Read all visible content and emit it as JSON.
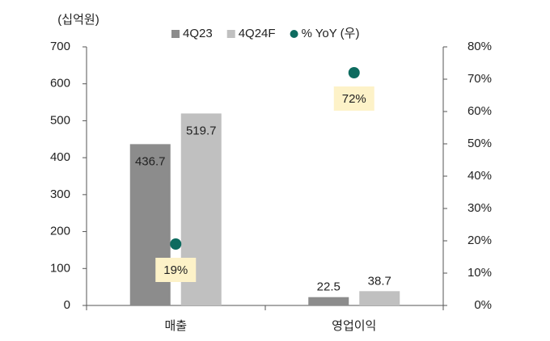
{
  "chart_data": {
    "type": "bar",
    "y_label": "(십억원)",
    "categories": [
      "매출",
      "영업이익"
    ],
    "series": [
      {
        "name": "4Q23",
        "color": "#8c8c8c",
        "values": [
          436.7,
          22.5
        ]
      },
      {
        "name": "4Q24F",
        "color": "#c0c0c0",
        "values": [
          519.7,
          38.7
        ]
      },
      {
        "name": "% YoY (우)",
        "type": "scatter",
        "axis": "y2",
        "color": "#0d6b5f",
        "values": [
          19,
          72
        ],
        "value_labels": [
          "19%",
          "72%"
        ]
      }
    ],
    "ylim": [
      0,
      700
    ],
    "yticks": [
      0,
      100,
      200,
      300,
      400,
      500,
      600,
      700
    ],
    "y2lim": [
      0,
      80
    ],
    "y2ticks": [
      {
        "value": 0,
        "label": "0%"
      },
      {
        "value": 10,
        "label": "10%"
      },
      {
        "value": 20,
        "label": "20%"
      },
      {
        "value": 30,
        "label": "30%"
      },
      {
        "value": 40,
        "label": "40%"
      },
      {
        "value": 50,
        "label": "50%"
      },
      {
        "value": 60,
        "label": "60%"
      },
      {
        "value": 70,
        "label": "70%"
      },
      {
        "value": 80,
        "label": "80%"
      }
    ],
    "grid": false
  }
}
